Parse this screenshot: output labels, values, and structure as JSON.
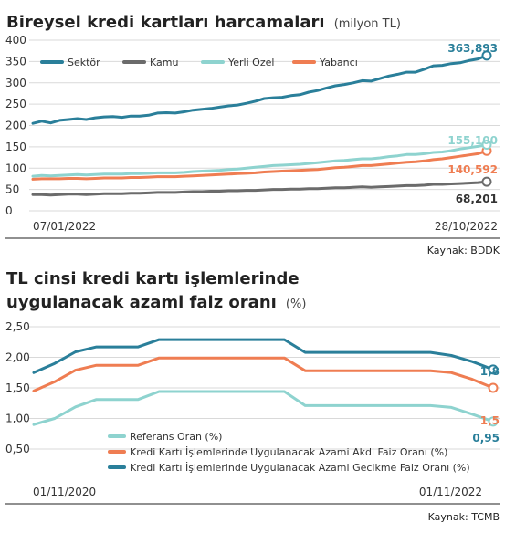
{
  "colors": {
    "sektor": "#2a7f9a",
    "kamu": "#6b6b6b",
    "yerli": "#8ed3cf",
    "yabanci": "#ef7d52",
    "referans": "#8ed3cf",
    "akdi": "#ef7d52",
    "gecikme": "#2a7f9a",
    "grid": "#d9d9d9",
    "divider": "#222222"
  },
  "chart_data": [
    {
      "type": "line",
      "title": "Bireysel kredi kartları harcamaları",
      "unit": "(milyon TL)",
      "ylim": [
        0,
        400
      ],
      "yticks": [
        0,
        50,
        100,
        150,
        200,
        250,
        300,
        350,
        400
      ],
      "xtick_labels": [
        "07/01/2022",
        "28/10/2022"
      ],
      "grid": true,
      "legend": "top-left",
      "source": "Kaynak: BDDK",
      "end_labels": [
        "363,893",
        "155,100",
        "140,592",
        "68,201"
      ],
      "series": [
        {
          "name": "Sektör",
          "color": "sektor",
          "values": [
            205,
            210,
            206,
            212,
            214,
            216,
            214,
            218,
            220,
            221,
            219,
            222,
            222,
            224,
            229,
            230,
            229,
            232,
            236,
            238,
            240,
            243,
            246,
            248,
            252,
            257,
            263,
            265,
            266,
            270,
            272,
            278,
            282,
            288,
            293,
            296,
            300,
            305,
            304,
            310,
            316,
            320,
            325,
            325,
            332,
            340,
            341,
            345,
            347,
            352,
            356,
            363.893
          ]
        },
        {
          "name": "Kamu",
          "color": "kamu",
          "values": [
            38,
            38,
            37,
            38,
            39,
            39,
            38,
            39,
            40,
            40,
            40,
            41,
            41,
            42,
            43,
            43,
            43,
            44,
            45,
            45,
            46,
            46,
            47,
            47,
            48,
            48,
            49,
            50,
            50,
            51,
            51,
            52,
            52,
            53,
            54,
            54,
            55,
            56,
            55,
            56,
            57,
            58,
            59,
            59,
            60,
            62,
            62,
            63,
            64,
            65,
            66,
            68.201
          ]
        },
        {
          "name": "Yerli Özel",
          "color": "yerli",
          "values": [
            81,
            83,
            82,
            83,
            84,
            85,
            84,
            85,
            86,
            86,
            86,
            87,
            87,
            88,
            89,
            89,
            89,
            90,
            92,
            93,
            94,
            95,
            97,
            98,
            100,
            102,
            104,
            106,
            107,
            108,
            109,
            111,
            113,
            115,
            117,
            118,
            120,
            122,
            122,
            124,
            127,
            129,
            132,
            132,
            134,
            137,
            138,
            141,
            145,
            148,
            151,
            155.1
          ]
        },
        {
          "name": "Yabancı",
          "color": "yabanci",
          "values": [
            74,
            75,
            75,
            75,
            76,
            76,
            75,
            76,
            77,
            77,
            77,
            78,
            78,
            79,
            80,
            80,
            80,
            81,
            82,
            83,
            84,
            85,
            86,
            87,
            88,
            89,
            91,
            92,
            93,
            94,
            95,
            96,
            97,
            99,
            101,
            102,
            104,
            106,
            106,
            108,
            110,
            112,
            114,
            115,
            117,
            120,
            122,
            125,
            128,
            131,
            134,
            140.592
          ]
        }
      ]
    },
    {
      "type": "line",
      "title_line1": "TL cinsi kredi kartı işlemlerinde",
      "title_line2": "uygulanacak azami faiz oranı",
      "unit": "(%)",
      "ylim": [
        0.5,
        2.5
      ],
      "ytick_labels": [
        "0,50",
        "1,00",
        "1,50",
        "2,00",
        "2,50"
      ],
      "yticks": [
        0.5,
        1.0,
        1.5,
        2.0,
        2.5
      ],
      "xtick_labels": [
        "01/11/2020",
        "01/11/2022"
      ],
      "grid": true,
      "legend": "bottom-center",
      "source": "Kaynak: TCMB",
      "end_labels": [
        "1,8",
        "1,5",
        "0,95"
      ],
      "series": [
        {
          "name": "Referans Oran (%)",
          "color": "referans",
          "values": [
            0.9,
            1.0,
            1.19,
            1.31,
            1.31,
            1.31,
            1.44,
            1.44,
            1.44,
            1.44,
            1.44,
            1.44,
            1.44,
            1.21,
            1.21,
            1.21,
            1.21,
            1.21,
            1.21,
            1.21,
            1.18,
            1.07,
            0.95
          ]
        },
        {
          "name": "Kredi Kartı İşlemlerinde Uygulanacak Azami Akdi Faiz Oranı (%)",
          "color": "akdi",
          "values": [
            1.45,
            1.6,
            1.79,
            1.87,
            1.87,
            1.87,
            1.99,
            1.99,
            1.99,
            1.99,
            1.99,
            1.99,
            1.99,
            1.78,
            1.78,
            1.78,
            1.78,
            1.78,
            1.78,
            1.78,
            1.75,
            1.64,
            1.5
          ]
        },
        {
          "name": "Kredi Kartı İşlemlerinde Uygulanacak Azami Gecikme Faiz Oranı (%)",
          "color": "gecikme",
          "values": [
            1.75,
            1.9,
            2.09,
            2.17,
            2.17,
            2.17,
            2.29,
            2.29,
            2.29,
            2.29,
            2.29,
            2.29,
            2.29,
            2.08,
            2.08,
            2.08,
            2.08,
            2.08,
            2.08,
            2.08,
            2.03,
            1.93,
            1.8
          ]
        }
      ]
    }
  ]
}
